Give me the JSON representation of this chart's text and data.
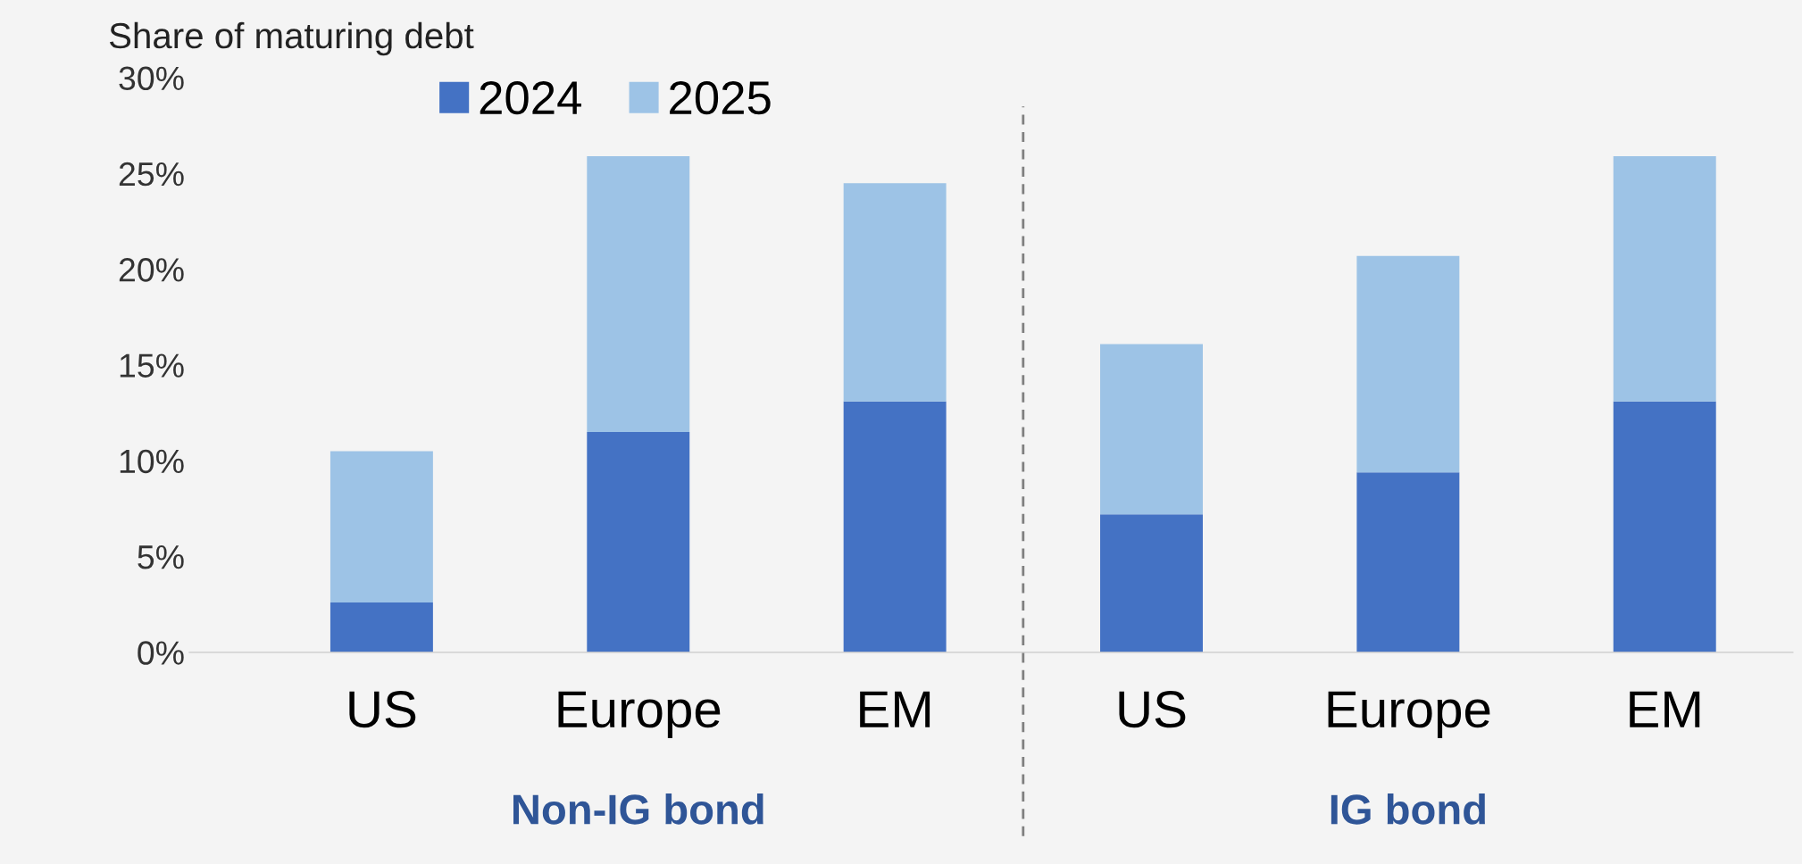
{
  "chart_data": {
    "type": "bar",
    "stacked": true,
    "ylabel": "Share of maturing debt",
    "categories": [
      "US",
      "Europe",
      "EM",
      "US",
      "Europe",
      "EM"
    ],
    "series": [
      {
        "name": "2024",
        "color": "#4472c4",
        "values": [
          2.6,
          11.5,
          13.1,
          7.2,
          9.4,
          13.1
        ]
      },
      {
        "name": "2025",
        "color": "#9dc3e6",
        "values": [
          7.9,
          14.4,
          11.4,
          8.9,
          11.3,
          12.8
        ]
      }
    ],
    "ylim": [
      0,
      30
    ],
    "yticks": [
      {
        "value": 0,
        "label": "0%"
      },
      {
        "value": 5,
        "label": "5%"
      },
      {
        "value": 10,
        "label": "10%"
      },
      {
        "value": 15,
        "label": "15%"
      },
      {
        "value": 20,
        "label": "20%"
      },
      {
        "value": 25,
        "label": "25%"
      },
      {
        "value": 30,
        "label": "30%"
      }
    ],
    "annotations": [
      "Non-IG bond",
      "IG bond"
    ],
    "grid": false,
    "legend": "top"
  }
}
